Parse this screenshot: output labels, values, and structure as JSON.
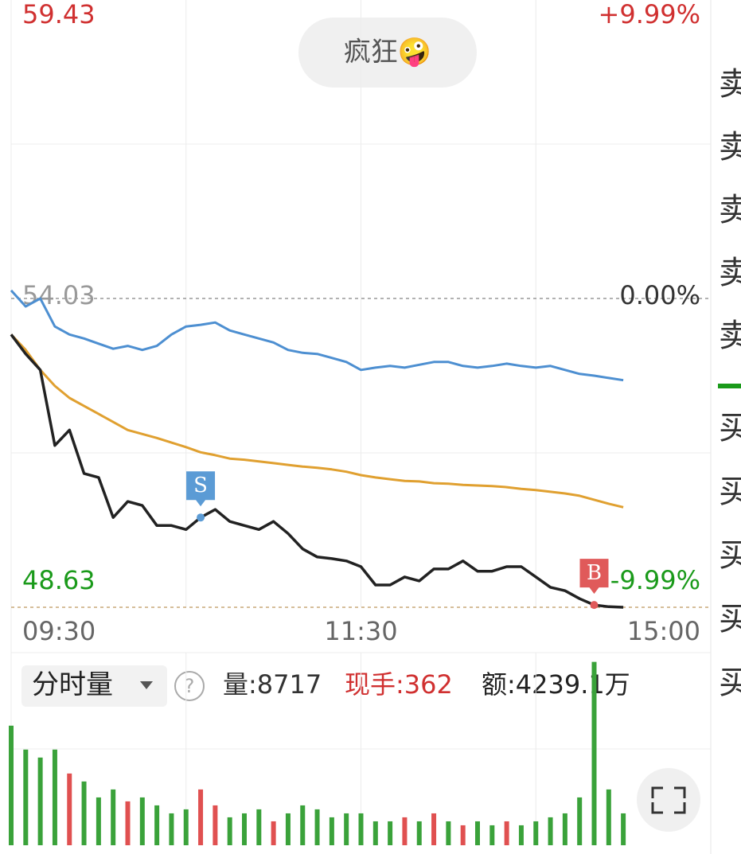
{
  "badge": "疯狂🤪",
  "info_bar": {
    "mode": "分时量",
    "help": "?",
    "volume": "量:8717",
    "current": "现手:362",
    "amount": "额:4239.1万"
  },
  "order_book": {
    "sell": [
      "卖",
      "卖",
      "卖",
      "卖",
      "卖"
    ],
    "buy": [
      "买",
      "买",
      "买",
      "买",
      "买"
    ]
  },
  "chart_data": {
    "type": "line",
    "x": [
      "09:30",
      "09:35",
      "09:40",
      "09:45",
      "09:50",
      "09:55",
      "10:00",
      "10:05",
      "10:10",
      "10:15",
      "10:20",
      "10:25",
      "10:30",
      "10:35",
      "10:40",
      "10:45",
      "10:50",
      "10:55",
      "11:00",
      "11:05",
      "11:10",
      "11:15",
      "11:20",
      "11:25",
      "11:30",
      "13:05",
      "13:10",
      "13:15",
      "13:20",
      "13:25",
      "13:30",
      "13:35",
      "13:40",
      "13:45",
      "13:50",
      "13:55",
      "14:00",
      "14:05",
      "14:10",
      "14:15",
      "14:20",
      "14:25",
      "14:30"
    ],
    "xlim": [
      "09:30",
      "15:00"
    ],
    "xticks": [
      "09:30",
      "11:30",
      "15:00"
    ],
    "ylim": [
      48.63,
      59.43
    ],
    "yticks": [
      59.43,
      54.03,
      48.63
    ],
    "y2lim": [
      -9.99,
      9.99
    ],
    "y2ticks": [
      {
        "value": 9.99,
        "label": "+9.99%"
      },
      {
        "value": 0,
        "label": "0.00%"
      },
      {
        "value": -9.99,
        "label": "-9.99%"
      }
    ],
    "series": [
      {
        "color": "#4d8fd1",
        "values": [
          54.17,
          53.89,
          54.03,
          53.54,
          53.4,
          53.33,
          53.24,
          53.15,
          53.2,
          53.13,
          53.2,
          53.4,
          53.54,
          53.57,
          53.61,
          53.47,
          53.4,
          53.33,
          53.26,
          53.13,
          53.08,
          53.06,
          52.99,
          52.92,
          52.78,
          52.82,
          52.85,
          52.82,
          52.87,
          52.92,
          52.92,
          52.85,
          52.82,
          52.85,
          52.89,
          52.85,
          52.82,
          52.85,
          52.78,
          52.71,
          52.68,
          52.64,
          52.6
        ]
      },
      {
        "color": "#e0a030",
        "values": [
          53.4,
          53.13,
          52.78,
          52.5,
          52.29,
          52.15,
          52.01,
          51.87,
          51.73,
          51.66,
          51.59,
          51.51,
          51.43,
          51.34,
          51.29,
          51.23,
          51.21,
          51.18,
          51.15,
          51.12,
          51.09,
          51.07,
          51.04,
          51.0,
          50.94,
          50.9,
          50.87,
          50.84,
          50.83,
          50.8,
          50.79,
          50.77,
          50.76,
          50.75,
          50.73,
          50.7,
          50.68,
          50.65,
          50.62,
          50.58,
          50.51,
          50.44,
          50.38
        ]
      },
      {
        "color": "#222222",
        "values": [
          53.4,
          53.06,
          52.78,
          51.46,
          51.73,
          50.97,
          50.9,
          50.2,
          50.48,
          50.41,
          50.06,
          50.06,
          49.99,
          50.2,
          50.34,
          50.13,
          50.06,
          49.99,
          50.13,
          49.92,
          49.65,
          49.51,
          49.48,
          49.44,
          49.34,
          49.02,
          49.02,
          49.16,
          49.09,
          49.3,
          49.3,
          49.44,
          49.26,
          49.26,
          49.34,
          49.34,
          49.16,
          48.98,
          48.92,
          48.78,
          48.67,
          48.64,
          48.63
        ]
      }
    ],
    "annotations": [
      {
        "text": "S",
        "x": "10:35",
        "color": "#5b9bd5"
      },
      {
        "text": "B",
        "x": "14:20",
        "color": "#e05a5a"
      }
    ],
    "volume": {
      "ylim": [
        0,
        36000
      ],
      "up_color": "#e05050",
      "down_color": "#3aa23a",
      "values": [
        22350,
        17880,
        16390,
        17880,
        13410,
        11920,
        8940,
        10430,
        8200,
        8940,
        7450,
        5960,
        6710,
        10430,
        7450,
        5220,
        5960,
        6710,
        4470,
        5960,
        7450,
        6710,
        5220,
        5960,
        5960,
        4470,
        4470,
        5220,
        4470,
        5960,
        4470,
        3730,
        4470,
        3730,
        4470,
        3730,
        4470,
        5220,
        5960,
        8940,
        34270,
        10430,
        5960
      ]
    }
  }
}
